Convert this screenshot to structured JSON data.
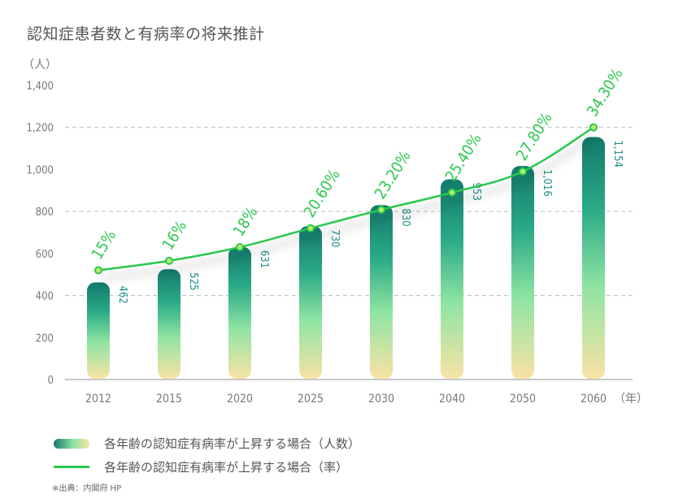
{
  "title": "認知症患者数と有病率の将来推計",
  "colors": {
    "bar_top": "#13796b",
    "bar_mid_top": "#2aaa86",
    "bar_mid": "#8fe4a3",
    "bar_bottom": "#f9e3a5",
    "line": "#2cc84e",
    "marker_fill": "#b8f06a",
    "value_label": "#1a8f82",
    "rate_label": "#2cc84e",
    "axis_text": "#777777",
    "grid": "#bbbbbb"
  },
  "legend": [
    {
      "type": "bar",
      "label": "各年齢の認知症有病率が上昇する場合（人数）"
    },
    {
      "type": "line",
      "label": "各年齢の認知症有病率が上昇する場合（率）"
    }
  ],
  "source_note": "※出典：内閣府 HP",
  "chart_data": {
    "type": "bar",
    "title": "認知症患者数と有病率の将来推計",
    "xlabel": "（年）",
    "ylabel": "（人）",
    "categories": [
      "2012",
      "2015",
      "2020",
      "2025",
      "2030",
      "2040",
      "2050",
      "2060"
    ],
    "ylim": [
      0,
      1400
    ],
    "yticks": [
      0,
      200,
      400,
      600,
      800,
      1000,
      1200,
      1400
    ],
    "ytick_labels": [
      "0",
      "200",
      "400",
      "600",
      "800",
      "1,000",
      "1,200",
      "1,400"
    ],
    "grid_lines": [
      400,
      800,
      1200
    ],
    "grid": true,
    "legend_position": "bottom-left",
    "series": [
      {
        "name": "各年齢の認知症有病率が上昇する場合（人数）",
        "type": "bar",
        "values": [
          462,
          525,
          631,
          730,
          830,
          953,
          1016,
          1154
        ],
        "labels": [
          "462",
          "525",
          "631",
          "730",
          "830",
          "953",
          "1,016",
          "1,154"
        ]
      },
      {
        "name": "各年齢の認知症有病率が上昇する場合（率）",
        "type": "line",
        "values": [
          15,
          16,
          18,
          20.6,
          23.2,
          25.4,
          27.8,
          34.3
        ],
        "labels": [
          "15%",
          "16%",
          "18%",
          "20.60%",
          "23.20%",
          "25.40%",
          "27.80%",
          "34.30%"
        ],
        "plotted_on_count_scale": [
          520,
          565,
          630,
          720,
          808,
          890,
          990,
          1200
        ]
      }
    ]
  }
}
